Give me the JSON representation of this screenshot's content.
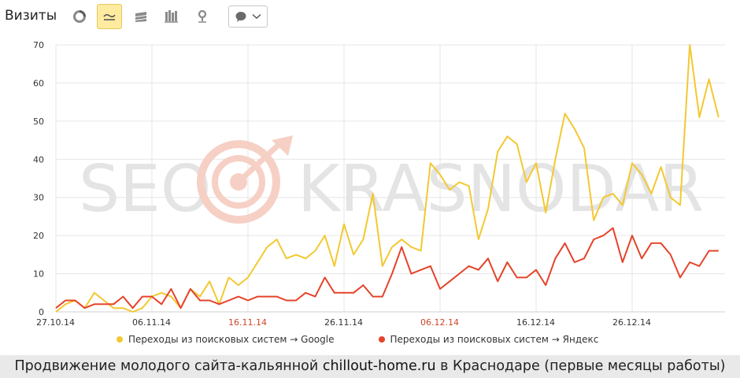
{
  "header": {
    "title": "Визиты",
    "buttons": [
      {
        "icon": "pie-chart-icon",
        "active": false
      },
      {
        "icon": "line-chart-icon",
        "active": true
      },
      {
        "icon": "stacked-area-icon",
        "active": false
      },
      {
        "icon": "bar-chart-icon",
        "active": false
      },
      {
        "icon": "map-pin-icon",
        "active": false
      }
    ],
    "select": {
      "icon": "speech-bubble-icon",
      "chevron": "chevron-down-icon"
    }
  },
  "watermark": {
    "left": "SEO",
    "right": "KRASNODAR"
  },
  "caption": {
    "before": "Продвижение молодого сайта-кальянной ",
    "site": "chillout-home.ru",
    "after": " в Краснодаре (первые месяцы работы)"
  },
  "colors": {
    "google": "#f3c831",
    "yandex": "#e5432a",
    "grid": "#e6e6e6",
    "holiday_tick": "#d0452a",
    "watermark": "#e4e4e4",
    "watermark_logo": "#f6d0c5"
  },
  "chart_data": {
    "type": "line",
    "title": "Визиты",
    "ylim": [
      0,
      70
    ],
    "yticks": [
      "0",
      "10",
      "20",
      "30",
      "40",
      "50",
      "60",
      "70"
    ],
    "xticks": [
      "27.10.14",
      "06.11.14",
      "16.11.14",
      "26.11.14",
      "06.12.14",
      "16.12.14",
      "26.12.14"
    ],
    "x_start": "2014-10-27",
    "grid": true,
    "legend_position": "bottom",
    "series": [
      {
        "name": "Переходы из поисковых систем → Google",
        "color": "#f3c831",
        "values": [
          0,
          2,
          3,
          1,
          5,
          3,
          1,
          1,
          0,
          1,
          4,
          5,
          4,
          1,
          6,
          4,
          8,
          2,
          9,
          7,
          9,
          13,
          17,
          19,
          14,
          15,
          14,
          16,
          20,
          12,
          23,
          15,
          19,
          31,
          12,
          17,
          19,
          17,
          16,
          39,
          36,
          32,
          34,
          33,
          19,
          27,
          42,
          46,
          44,
          34,
          39,
          26,
          40,
          52,
          48,
          43,
          24,
          30,
          31,
          28,
          39,
          36,
          31,
          38,
          30,
          28,
          70,
          51,
          61,
          51
        ]
      },
      {
        "name": "Переходы из поисковых систем → Яндекс",
        "color": "#e5432a",
        "values": [
          1,
          3,
          3,
          1,
          2,
          2,
          2,
          4,
          1,
          4,
          4,
          2,
          6,
          1,
          6,
          3,
          3,
          2,
          3,
          4,
          3,
          4,
          4,
          4,
          3,
          3,
          5,
          4,
          9,
          5,
          5,
          5,
          7,
          4,
          4,
          10,
          17,
          10,
          11,
          12,
          6,
          8,
          10,
          12,
          11,
          14,
          8,
          13,
          9,
          9,
          11,
          7,
          14,
          18,
          13,
          14,
          19,
          20,
          22,
          13,
          20,
          14,
          18,
          18,
          15,
          9,
          13,
          12,
          16,
          16
        ]
      }
    ]
  }
}
